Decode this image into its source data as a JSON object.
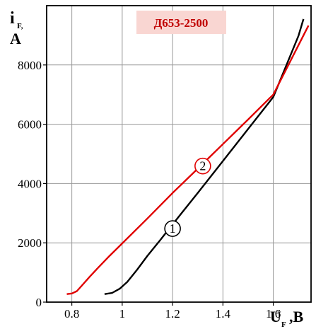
{
  "chart_data": {
    "type": "line",
    "title": "Д653-2500",
    "ylabel_main": "i",
    "ylabel_sub": "F,",
    "ylabel_unit": "A",
    "xlabel_main": "U",
    "xlabel_sub": "F",
    "xlabel_unit": ",B",
    "xlim": [
      0.7,
      1.75
    ],
    "ylim": [
      0,
      10000
    ],
    "x_ticks": [
      "0.8",
      "1",
      "1.2",
      "1.4",
      "1.6"
    ],
    "x_tick_values": [
      0.8,
      1.0,
      1.2,
      1.4,
      1.6
    ],
    "y_ticks": [
      "0",
      "2000",
      "4000",
      "6000",
      "8000"
    ],
    "y_tick_values": [
      0,
      2000,
      4000,
      6000,
      8000
    ],
    "grid": true,
    "series": [
      {
        "name": "1",
        "color": "#000000",
        "x": [
          0.93,
          0.96,
          0.99,
          1.02,
          1.06,
          1.1,
          1.15,
          1.2,
          1.3,
          1.4,
          1.5,
          1.6,
          1.7,
          1.72
        ],
        "y": [
          270,
          310,
          450,
          680,
          1100,
          1560,
          2080,
          2620,
          3680,
          4760,
          5840,
          6920,
          8980,
          9550
        ]
      },
      {
        "name": "2",
        "color": "#e00000",
        "x": [
          0.78,
          0.8,
          0.82,
          0.84,
          0.87,
          0.9,
          0.95,
          1.0,
          1.1,
          1.2,
          1.3,
          1.4,
          1.5,
          1.6,
          1.74
        ],
        "y": [
          270,
          290,
          370,
          560,
          850,
          1120,
          1560,
          1980,
          2820,
          3680,
          4500,
          5330,
          6160,
          7000,
          9330
        ]
      }
    ],
    "annotations": [
      {
        "text": "1",
        "x": 1.2,
        "y": 2480
      },
      {
        "text": "2",
        "x": 1.32,
        "y": 4590
      }
    ]
  }
}
